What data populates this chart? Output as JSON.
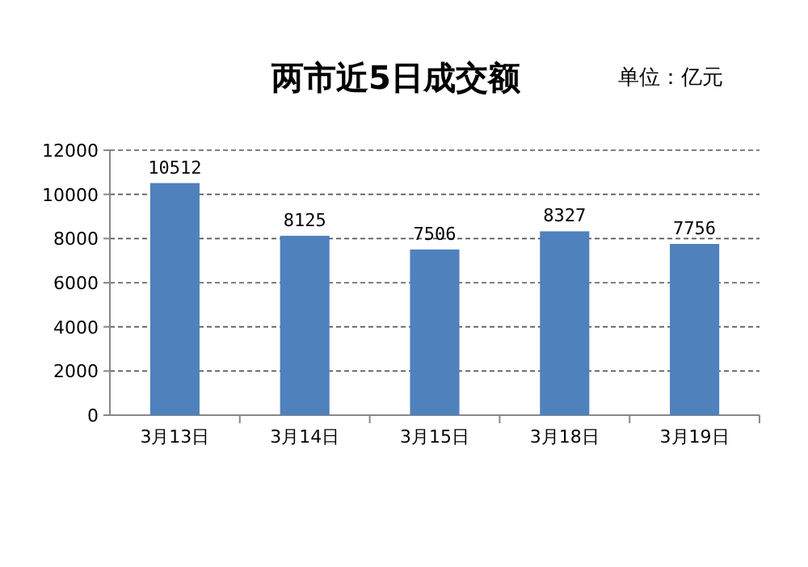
{
  "chart_data": {
    "type": "bar",
    "title": "两市近5日成交额",
    "annotations": [
      "单位：亿元"
    ],
    "categories": [
      "3月13日",
      "3月14日",
      "3月15日",
      "3月18日",
      "3月19日"
    ],
    "values": [
      10512,
      8125,
      7506,
      8327,
      7756
    ],
    "color": "#4f81bd",
    "ylim": [
      0,
      12000
    ],
    "yticks": [
      0,
      2000,
      4000,
      6000,
      8000,
      10000,
      12000
    ],
    "grid": "y",
    "data_labels": true
  }
}
